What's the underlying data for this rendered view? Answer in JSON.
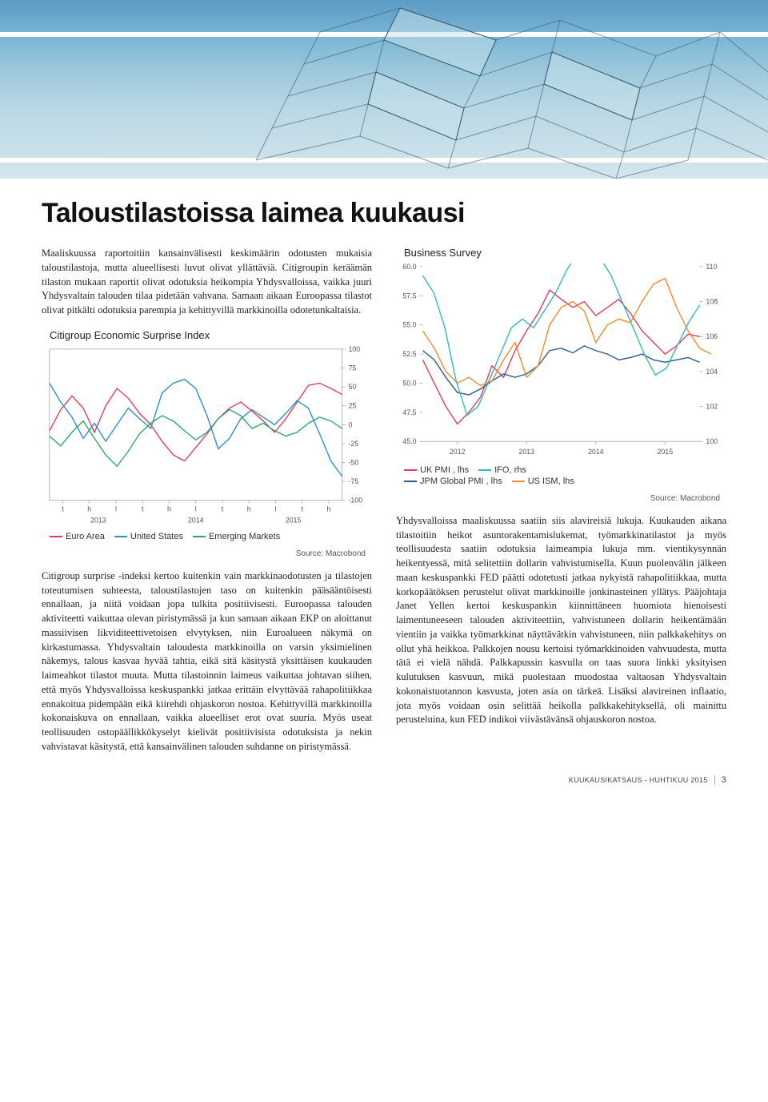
{
  "hero": {
    "bg_top": "#5a9bc4",
    "bg_bot": "#d4e6ed"
  },
  "headline": "Taloustilastoissa laimea kuukausi",
  "left_intro": "Maaliskuussa raportoitiin kansainvälisesti keskimäärin odotusten mukaisia taloustilastoja, mutta alueellisesti luvut olivat yllättäviä. Citigroupin keräämän tilaston mukaan raportit olivat odotuksia heikompia Yhdysvalloissa, vaikka juuri Yhdysvaltain talouden tilaa pidetään vahvana. Samaan aikaan Euroopassa tilastot olivat pitkälti odotuksia parempia ja kehittyvillä markkinoilla odotetunkaltaisia.",
  "left_mid": "Citigroup surprise -indeksi kertoo kuitenkin vain markkinaodotusten ja tilastojen toteutumisen suhteesta, taloustilastojen taso on kuitenkin pääsääntöisesti ennallaan, ja niitä voidaan jopa tulkita positiivisesti. Euroopassa talouden aktiviteetti vaikuttaa olevan piristymässä ja kun samaan aikaan EKP on aloittanut massiivisen likviditeettivetoisen elvytyksen, niin Euroalueen näkymä on kirkastumassa. Yhdysvaltain taloudesta markkinoilla on varsin yksimielinen näkemys, talous kasvaa hyvää tahtia, eikä sitä käsitystä yksittäisen kuukauden laimeahkot tilastot muuta. Mutta tilastoinnin laimeus vaikuttaa johtavan siihen, että myös Yhdysvalloissa keskuspankki jatkaa erittäin elvyttävää rahapolitiikkaa ennakoitua pidempään eikä kiirehdi ohjaskoron nostoa. Kehittyvillä markkinoilla kokonaiskuva on ennallaan, vaikka alueelliset erot ovat suuria. Myös useat teollisuuden ostopäällikkökyselyt kielivät positiivisista odotuksista ja nekin vahvistavat käsitystä, että kansainvälinen talouden suhdanne on piristymässä.",
  "right_body": "Yhdysvalloissa maaliskuussa saatiin siis alavireisiä lukuja. Kuukauden aikana tilastoitiin heikot asuntorakentamislukemat, työmarkkinatilastot ja myös teollisuudesta saatiin odotuksia laimeampia lukuja mm. vientikysynnän heikentyessä, mitä selitettiin dollarin vahvistumisella. Kuun puolenvälin jälkeen maan keskuspankki FED päätti odotetusti jatkaa nykyistä rahapolitiikkaa, mutta korkopäätöksen perustelut olivat markkinoille jonkinasteinen yllätys. Pääjohtaja Janet Yellen kertoi keskuspankin kiinnittäneen huomiota hienoisesti laimentuneeseen talouden aktiviteettiin, vahvistuneen dollarin heikentämään vientiin ja vaikka työmarkkinat näyttävätkin vahvistuneen, niin palkkakehitys on ollut yhä heikkoa. Palkkojen nousu kertoisi työmarkkinoiden vahvuudesta, mutta tätä ei vielä nähdä. Palkkapussin kasvulla on taas suora linkki yksityisen kulutuksen kasvuun, mikä puolestaan muodostaa valtaosan Yhdysvaltain kokonaistuotannon kasvusta, joten asia on tärkeä. Lisäksi alavireinen inflaatio, jota myös voidaan osin selittää heikolla palkkakehityksellä, oli mainittu perusteluina, kun FED indikoi viivästävänsä ohjauskoron nostoa.",
  "chart1": {
    "title": "Citigroup Economic Surprise Index",
    "y_ticks": [
      100,
      75,
      50,
      25,
      0,
      -25,
      -50,
      -75,
      -100
    ],
    "x_labels": [
      "t",
      "h",
      "l",
      "t",
      "h",
      "l",
      "t",
      "h",
      "l",
      "t",
      "h"
    ],
    "years": [
      "2013",
      "2014",
      "2015"
    ],
    "colors": {
      "euro": "#e03c5a",
      "us": "#2a8fc4",
      "em": "#2aa866",
      "grid": "#cfcfcf",
      "frame": "#888"
    },
    "series": {
      "euro": [
        -8,
        20,
        38,
        22,
        -10,
        25,
        48,
        35,
        15,
        0,
        -22,
        -40,
        -48,
        -30,
        -12,
        8,
        22,
        30,
        18,
        5,
        -10,
        8,
        30,
        52,
        55,
        48,
        40
      ],
      "us": [
        55,
        30,
        10,
        -18,
        2,
        -22,
        0,
        22,
        8,
        -5,
        42,
        55,
        60,
        48,
        12,
        -32,
        -18,
        8,
        20,
        10,
        0,
        15,
        32,
        22,
        -12,
        -48,
        -68
      ],
      "em": [
        -15,
        -28,
        -10,
        5,
        -18,
        -40,
        -55,
        -35,
        -12,
        2,
        12,
        5,
        -8,
        -20,
        -10,
        8,
        20,
        12,
        -5,
        2,
        -8,
        -15,
        -10,
        2,
        10,
        5,
        -5
      ]
    },
    "legend": [
      {
        "label": "Euro Area",
        "color": "#e03c5a"
      },
      {
        "label": "United States",
        "color": "#2a8fc4"
      },
      {
        "label": "Emerging Markets",
        "color": "#2aa866"
      }
    ],
    "source": "Source: Macrobond"
  },
  "chart2": {
    "title": "Business Survey",
    "left_ticks": [
      60.0,
      57.5,
      55.0,
      52.5,
      50.0,
      47.5,
      45.0
    ],
    "right_ticks": [
      110,
      108,
      106,
      104,
      102,
      100
    ],
    "years": [
      "2012",
      "2013",
      "2014",
      "2015"
    ],
    "colors": {
      "uk": "#e03c5a",
      "ifo": "#2fb7c4",
      "jpm": "#2a5a8f",
      "us": "#f08a2a",
      "grid": "#cfcfcf",
      "frame": "#888"
    },
    "series_lhs": {
      "uk": [
        52.0,
        50.0,
        48.0,
        46.5,
        47.5,
        48.8,
        51.5,
        50.5,
        52.8,
        54.5,
        56.0,
        58.0,
        57.2,
        56.5,
        57.0,
        55.8,
        56.5,
        57.2,
        56.0,
        54.5,
        53.5,
        52.5,
        53.2,
        54.2,
        54.0
      ],
      "jpm": [
        52.8,
        52.0,
        50.5,
        49.2,
        49.0,
        49.5,
        50.2,
        50.8,
        50.5,
        50.8,
        51.5,
        52.8,
        53.0,
        52.6,
        53.2,
        52.8,
        52.5,
        52.0,
        52.2,
        52.5,
        52.0,
        51.8,
        52.0,
        52.2,
        51.8
      ],
      "us": [
        54.5,
        53.0,
        51.0,
        50.0,
        50.5,
        49.8,
        50.2,
        52.0,
        53.5,
        50.5,
        51.5,
        55.0,
        56.5,
        57.0,
        56.2,
        53.5,
        55.0,
        55.5,
        55.2,
        57.0,
        58.5,
        59.0,
        56.5,
        54.5,
        53.0,
        52.5
      ]
    },
    "series_rhs": {
      "ifo": [
        109.5,
        108.5,
        106.5,
        103.5,
        101.5,
        102.0,
        103.5,
        105.0,
        106.5,
        107.0,
        106.5,
        107.5,
        108.5,
        109.8,
        110.8,
        111.2,
        110.5,
        109.5,
        108.0,
        106.5,
        105.0,
        103.8,
        104.2,
        105.5,
        106.8,
        107.8
      ]
    },
    "legend": [
      {
        "label": "UK PMI , lhs",
        "color": "#e03c5a"
      },
      {
        "label": "IFO, rhs",
        "color": "#2fb7c4"
      },
      {
        "label": "JPM Global PMI , lhs",
        "color": "#2a5a8f"
      },
      {
        "label": "US ISM, lhs",
        "color": "#f08a2a"
      }
    ],
    "source": "Source: Macrobond"
  },
  "footer": {
    "pub": "KUUKAUSIKATSAUS - HUHTIKUU 2015",
    "page": "3",
    "sep_color": "#d4a94a"
  }
}
